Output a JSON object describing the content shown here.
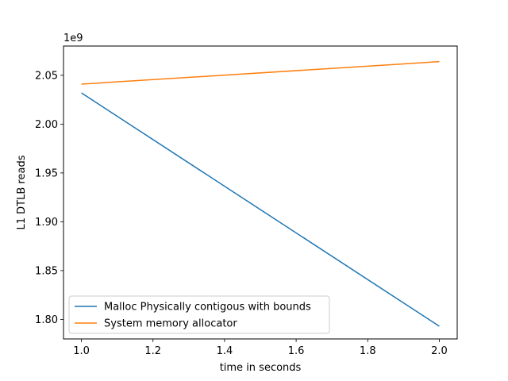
{
  "chart_data": {
    "type": "line",
    "title": "",
    "xlabel": "time in seconds",
    "ylabel": "L1 DTLB reads",
    "y_offset_label": "1e9",
    "xlim": [
      0.95,
      2.05
    ],
    "ylim": [
      1.78,
      2.08
    ],
    "x_ticks": [
      1.0,
      1.2,
      1.4,
      1.6,
      1.8,
      2.0
    ],
    "x_tick_labels": [
      "1.0",
      "1.2",
      "1.4",
      "1.6",
      "1.8",
      "2.0"
    ],
    "y_ticks": [
      1.8,
      1.85,
      1.9,
      1.95,
      2.0,
      2.05
    ],
    "y_tick_labels": [
      "1.80",
      "1.85",
      "1.90",
      "1.95",
      "2.00",
      "2.05"
    ],
    "grid": false,
    "legend_position": "lower-left",
    "series": [
      {
        "name": "Malloc Physically contigous with bounds",
        "color": "#1f77b4",
        "x": [
          1.0,
          2.0
        ],
        "y": [
          2.032,
          1.793
        ]
      },
      {
        "name": "System memory allocator",
        "color": "#ff7f0e",
        "x": [
          1.0,
          2.0
        ],
        "y": [
          2.041,
          2.064
        ]
      }
    ]
  }
}
